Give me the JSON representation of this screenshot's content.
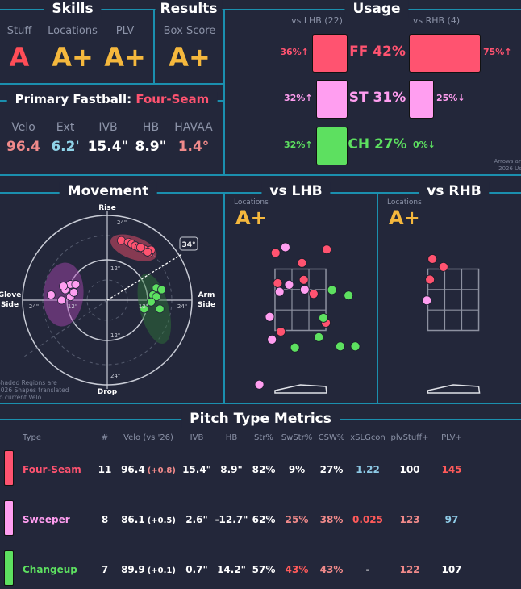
{
  "colors": {
    "four_seam": "#ff5370",
    "sweeper": "#ff9ef0",
    "changeup": "#5de060",
    "grade_gold": "#f5b83d",
    "grade_red": "#ff4d57",
    "line": "#1b8fae",
    "good_blue": "#8ecae6",
    "bad_red": "#ff5a5a",
    "salmon": "#f08a8a"
  },
  "skills": {
    "title": "Skills",
    "items": [
      {
        "label": "Stuff",
        "grade": "A"
      },
      {
        "label": "Locations",
        "grade": "A+"
      },
      {
        "label": "PLV",
        "grade": "A+"
      }
    ]
  },
  "results": {
    "title": "Results",
    "label": "Box Score",
    "grade": "A+"
  },
  "primary_fastball": {
    "title": "Primary Fastball:",
    "pitch": "Four-Seam",
    "stats": [
      {
        "label": "Velo",
        "value": "96.4"
      },
      {
        "label": "Ext",
        "value": "6.2'"
      },
      {
        "label": "IVB",
        "value": "15.4\""
      },
      {
        "label": "HB",
        "value": "8.9\""
      },
      {
        "label": "HAVAA",
        "value": "1.4°"
      }
    ]
  },
  "usage": {
    "title": "Usage",
    "lhb_header": "vs LHB (22)",
    "rhb_header": "vs RHB (4)",
    "rows": [
      {
        "pitch": "FF 42%",
        "lhb": 36,
        "lhb_label": "36%↑",
        "rhb": 75,
        "rhb_label": "75%↑"
      },
      {
        "pitch": "ST 31%",
        "lhb": 32,
        "lhb_label": "32%↑",
        "rhb": 25,
        "rhb_label": "25%↓"
      },
      {
        "pitch": "CH 27%",
        "lhb": 32,
        "lhb_label": "32%↑",
        "rhb": 0,
        "rhb_label": "0%↓"
      }
    ],
    "note_line1": "Arrows are vs",
    "note_line2": "2026 Usage"
  },
  "movement": {
    "title": "Movement",
    "rise": "Rise",
    "drop": "Drop",
    "glove_line1": "Glove",
    "glove_line2": "Side",
    "arm_line1": "Arm",
    "arm_line2": "Side",
    "ring_labels": {
      "top24": "24\"",
      "top12": "12\"",
      "bottom12": "12\"",
      "bottom24": "24\"",
      "left24": "24\"",
      "left12": "12\"",
      "right12": "12\"",
      "right24": "24\""
    },
    "arm_angle": "34°",
    "note_line1": "Shaded Regions are",
    "note_line2": "2026 Shapes translated",
    "note_line3": "to current Velo"
  },
  "locations": {
    "lhb": {
      "title": "vs LHB",
      "label": "Locations",
      "grade": "A+"
    },
    "rhb": {
      "title": "vs RHB",
      "label": "Locations",
      "grade": "A+"
    }
  },
  "chart_data": [
    {
      "type": "scatter",
      "name": "movement",
      "xlabel": "HB (in)",
      "ylabel": "IVB (in)",
      "xlim": [
        -24,
        24
      ],
      "ylim": [
        -24,
        24
      ],
      "arm_angle_deg": 34,
      "regions": [
        {
          "pitch": "four_seam",
          "hb": 7.5,
          "ivb": 14.9,
          "rx": 6.9,
          "ry": 3.2,
          "angle": 20
        },
        {
          "pitch": "sweeper",
          "hb": -12.5,
          "ivb": 1.6,
          "rx": 5.7,
          "ry": 9.1,
          "angle": 5
        },
        {
          "pitch": "changeup",
          "hb": 13.4,
          "ivb": -2.4,
          "rx": 4.1,
          "ry": 10.3,
          "angle": -15
        }
      ],
      "series": [
        {
          "pitch": "four_seam",
          "points": [
            [
              4,
              17
            ],
            [
              6,
              16.5
            ],
            [
              7,
              16
            ],
            [
              8,
              15.5
            ],
            [
              9,
              15
            ],
            [
              11,
              14
            ],
            [
              12,
              13.5
            ],
            [
              10.5,
              14.5
            ],
            [
              12.5,
              14.3
            ],
            [
              9.5,
              15
            ],
            [
              11.5,
              13.7
            ]
          ]
        },
        {
          "pitch": "sweeper",
          "points": [
            [
              -16,
              1.5
            ],
            [
              -13,
              0
            ],
            [
              -12,
              3
            ],
            [
              -10.5,
              4.5
            ],
            [
              -10.5,
              1
            ],
            [
              -9,
              4.5
            ],
            [
              -9.5,
              2.2
            ],
            [
              -12.5,
              4
            ]
          ]
        },
        {
          "pitch": "changeup",
          "points": [
            [
              14,
              3.5
            ],
            [
              15.5,
              3
            ],
            [
              13,
              1.5
            ],
            [
              14,
              1
            ],
            [
              12.5,
              -0.5
            ],
            [
              10.5,
              -2.5
            ],
            [
              15,
              -2.5
            ]
          ]
        }
      ]
    },
    {
      "type": "scatter",
      "name": "locations_vs_lhb",
      "xlabel": "plate_x (ft)",
      "ylabel": "plate_z (ft)",
      "series": [
        {
          "pitch": "four_seam",
          "points": [
            [
              -0.81,
              4.03
            ],
            [
              0.86,
              4.14
            ],
            [
              0.05,
              3.7
            ],
            [
              -0.74,
              3.04
            ],
            [
              0.11,
              3.15
            ],
            [
              0.43,
              2.69
            ],
            [
              0.83,
              1.75
            ],
            [
              -0.64,
              1.46
            ]
          ]
        },
        {
          "pitch": "sweeper",
          "points": [
            [
              -0.49,
              4.21
            ],
            [
              -0.37,
              2.99
            ],
            [
              -0.68,
              2.76
            ],
            [
              0.14,
              2.83
            ],
            [
              -1.0,
              1.94
            ],
            [
              -0.93,
              1.2
            ],
            [
              -1.34,
              -0.27
            ]
          ]
        },
        {
          "pitch": "changeup",
          "points": [
            [
              1.03,
              2.82
            ],
            [
              1.57,
              2.64
            ],
            [
              0.75,
              1.91
            ],
            [
              0.6,
              1.28
            ],
            [
              -0.18,
              0.94
            ],
            [
              1.3,
              0.98
            ],
            [
              1.79,
              0.98
            ]
          ]
        }
      ]
    },
    {
      "type": "scatter",
      "name": "locations_vs_rhb",
      "xlabel": "plate_x (ft)",
      "ylabel": "plate_z (ft)",
      "series": [
        {
          "pitch": "four_seam",
          "points": [
            [
              -0.68,
              3.83
            ],
            [
              -0.32,
              3.57
            ],
            [
              -0.76,
              3.16
            ]
          ]
        },
        {
          "pitch": "sweeper",
          "points": [
            [
              -0.86,
              2.48
            ]
          ]
        }
      ]
    }
  ],
  "metrics": {
    "title": "Pitch Type Metrics",
    "headers": [
      "Type",
      "#",
      "Velo (vs '26)",
      "IVB",
      "HB",
      "Str%",
      "SwStr%",
      "CSW%",
      "xSLGcon",
      "plvStuff+",
      "PLV+"
    ],
    "rows": [
      {
        "pitch": "four_seam",
        "type": "Four-Seam",
        "count": "11",
        "velo": "96.4",
        "velo_diff": "(+0.8)",
        "ivb": "15.4\"",
        "hb": "8.9\"",
        "str": "82%",
        "swstr": "9%",
        "csw": "27%",
        "xslg": "1.22",
        "stuff": "100",
        "plv": "145",
        "c": {
          "velo_diff": "#f08a8a",
          "swstr": "#fff",
          "csw": "#fff",
          "xslg": "#8ecae6",
          "stuff": "#fff",
          "plv": "#ff5a5a"
        }
      },
      {
        "pitch": "sweeper",
        "type": "Sweeper",
        "count": "8",
        "velo": "86.1",
        "velo_diff": "(+0.5)",
        "ivb": "2.6\"",
        "hb": "-12.7\"",
        "str": "62%",
        "swstr": "25%",
        "csw": "38%",
        "xslg": "0.025",
        "stuff": "123",
        "plv": "97",
        "c": {
          "velo_diff": "#fff",
          "swstr": "#f08a8a",
          "csw": "#f08a8a",
          "xslg": "#ff5a5a",
          "stuff": "#f08a8a",
          "plv": "#8ecae6"
        }
      },
      {
        "pitch": "changeup",
        "type": "Changeup",
        "count": "7",
        "velo": "89.9",
        "velo_diff": "(+0.1)",
        "ivb": "0.7\"",
        "hb": "14.2\"",
        "str": "57%",
        "swstr": "43%",
        "csw": "43%",
        "xslg": "-",
        "stuff": "122",
        "plv": "107",
        "c": {
          "velo_diff": "#fff",
          "swstr": "#ff5a5a",
          "csw": "#f08a8a",
          "xslg": "#fff",
          "stuff": "#f08a8a",
          "plv": "#fff"
        }
      }
    ]
  }
}
